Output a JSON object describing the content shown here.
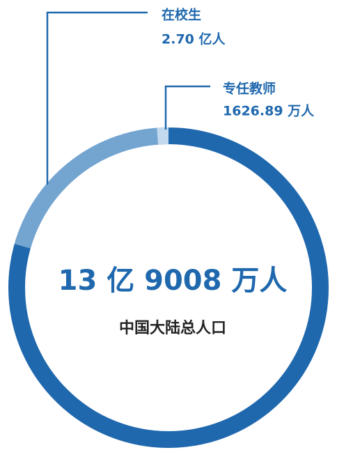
{
  "chart_data": {
    "type": "donut",
    "total": 139008,
    "total_label": "13 亿 9008 万人",
    "total_color": "#1f68ae",
    "subtitle": "中国大陆总人口",
    "categories": [
      "在校生",
      "专任教师"
    ],
    "values": [
      27000,
      1626.89
    ],
    "value_labels": [
      "2.70 亿人",
      "1626.89 万人"
    ],
    "colors": [
      "#74a5d0",
      "#c2d9ee"
    ]
  }
}
